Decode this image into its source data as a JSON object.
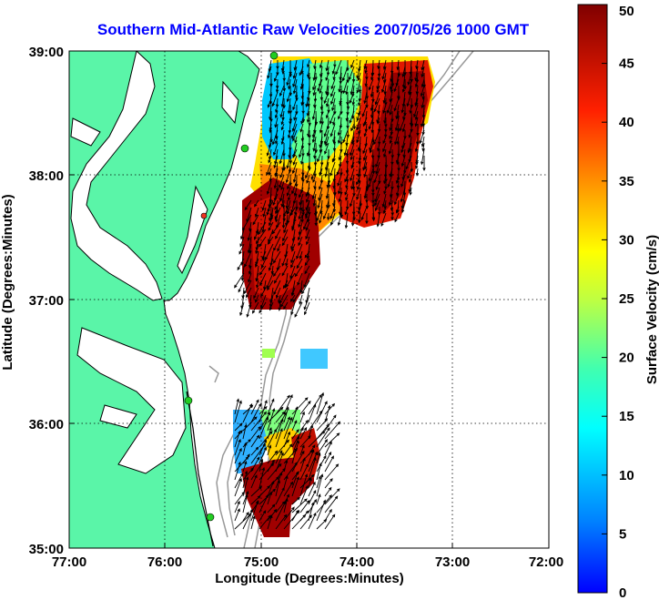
{
  "title": "Southern Mid-Atlantic Raw Velocities 2007/05/26 1000 GMT",
  "xlabel": "Longitude (Degrees:Minutes)",
  "ylabel": "Latitude (Degrees:Minutes)",
  "x_ticks": [
    "77:00",
    "76:00",
    "75:00",
    "74:00",
    "73:00",
    "72:00"
  ],
  "y_ticks": [
    "39:00",
    "38:00",
    "37:00",
    "36:00",
    "35:00"
  ],
  "colorbar": {
    "label": "Surface Velocity (cm/s)",
    "ticks": [
      "0",
      "5",
      "10",
      "15",
      "20",
      "25",
      "30",
      "35",
      "40",
      "45",
      "50"
    ],
    "range": [
      0,
      50
    ],
    "colormap": "jet"
  },
  "map": {
    "lon_range": [
      -77,
      -72
    ],
    "lat_range": [
      35,
      39
    ],
    "land_color": "#5af5a8",
    "coast_color": "#000000",
    "bathymetry_color": "#999999",
    "grid": "dotted",
    "station_color": "#22cc22",
    "station_alt_color": "#ee3322"
  },
  "chart_data": {
    "type": "heatmap",
    "title": "Southern Mid-Atlantic Raw Velocities 2007/05/26 1000 GMT",
    "xlabel": "Longitude (Degrees:Minutes)",
    "ylabel": "Latitude (Degrees:Minutes)",
    "xlim": [
      -77,
      -72
    ],
    "ylim": [
      35,
      39
    ],
    "value_label": "Surface Velocity (cm/s)",
    "value_range": [
      0,
      50
    ],
    "regions": [
      {
        "lon": [
          -75.0,
          -73.8
        ],
        "lat": [
          38.7,
          39.0
        ],
        "speed": 25
      },
      {
        "lon": [
          -74.1,
          -73.3
        ],
        "lat": [
          38.4,
          38.95
        ],
        "speed": 45
      },
      {
        "lon": [
          -75.1,
          -74.6
        ],
        "lat": [
          38.4,
          39.0
        ],
        "speed": 10
      },
      {
        "lon": [
          -74.5,
          -73.5
        ],
        "lat": [
          37.7,
          38.4
        ],
        "speed": 48
      },
      {
        "lon": [
          -75.1,
          -74.4
        ],
        "lat": [
          37.5,
          38.1
        ],
        "speed": 30
      },
      {
        "lon": [
          -75.3,
          -74.7
        ],
        "lat": [
          36.9,
          37.8
        ],
        "speed": 48
      },
      {
        "lon": [
          -75.2,
          -74.9
        ],
        "lat": [
          35.3,
          36.1
        ],
        "speed": 15
      },
      {
        "lon": [
          -75.0,
          -74.5
        ],
        "lat": [
          35.3,
          35.8
        ],
        "speed": 48
      },
      {
        "lon": [
          -74.9,
          -74.4
        ],
        "lat": [
          35.6,
          36.1
        ],
        "speed": 35
      },
      {
        "lon": [
          -74.6,
          -74.3
        ],
        "lat": [
          36.45,
          36.6
        ],
        "speed": 10
      }
    ],
    "stations": [
      {
        "lon": -74.9,
        "lat": 39.0
      },
      {
        "lon": -75.15,
        "lat": 38.22
      },
      {
        "lon": -75.6,
        "lat": 37.67
      },
      {
        "lon": -75.7,
        "lat": 36.2
      },
      {
        "lon": -75.5,
        "lat": 35.27
      }
    ]
  }
}
